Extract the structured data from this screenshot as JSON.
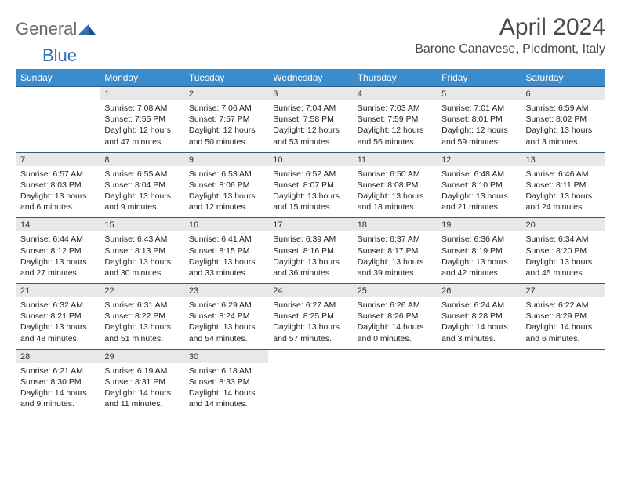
{
  "brand": {
    "part1": "General",
    "part2": "Blue"
  },
  "title": "April 2024",
  "location": "Barone Canavese, Piedmont, Italy",
  "colors": {
    "header_bg": "#3a8ccc",
    "header_text": "#ffffff",
    "daynum_bg": "#e8e8e8",
    "row_border": "#2c5c87",
    "logo_gray": "#6a6a6a",
    "logo_blue": "#2f6fb3",
    "title_color": "#4a4a4a"
  },
  "weekdays": [
    "Sunday",
    "Monday",
    "Tuesday",
    "Wednesday",
    "Thursday",
    "Friday",
    "Saturday"
  ],
  "weeks": [
    [
      null,
      {
        "n": "1",
        "sr": "7:08 AM",
        "ss": "7:55 PM",
        "dl": "12 hours and 47 minutes."
      },
      {
        "n": "2",
        "sr": "7:06 AM",
        "ss": "7:57 PM",
        "dl": "12 hours and 50 minutes."
      },
      {
        "n": "3",
        "sr": "7:04 AM",
        "ss": "7:58 PM",
        "dl": "12 hours and 53 minutes."
      },
      {
        "n": "4",
        "sr": "7:03 AM",
        "ss": "7:59 PM",
        "dl": "12 hours and 56 minutes."
      },
      {
        "n": "5",
        "sr": "7:01 AM",
        "ss": "8:01 PM",
        "dl": "12 hours and 59 minutes."
      },
      {
        "n": "6",
        "sr": "6:59 AM",
        "ss": "8:02 PM",
        "dl": "13 hours and 3 minutes."
      }
    ],
    [
      {
        "n": "7",
        "sr": "6:57 AM",
        "ss": "8:03 PM",
        "dl": "13 hours and 6 minutes."
      },
      {
        "n": "8",
        "sr": "6:55 AM",
        "ss": "8:04 PM",
        "dl": "13 hours and 9 minutes."
      },
      {
        "n": "9",
        "sr": "6:53 AM",
        "ss": "8:06 PM",
        "dl": "13 hours and 12 minutes."
      },
      {
        "n": "10",
        "sr": "6:52 AM",
        "ss": "8:07 PM",
        "dl": "13 hours and 15 minutes."
      },
      {
        "n": "11",
        "sr": "6:50 AM",
        "ss": "8:08 PM",
        "dl": "13 hours and 18 minutes."
      },
      {
        "n": "12",
        "sr": "6:48 AM",
        "ss": "8:10 PM",
        "dl": "13 hours and 21 minutes."
      },
      {
        "n": "13",
        "sr": "6:46 AM",
        "ss": "8:11 PM",
        "dl": "13 hours and 24 minutes."
      }
    ],
    [
      {
        "n": "14",
        "sr": "6:44 AM",
        "ss": "8:12 PM",
        "dl": "13 hours and 27 minutes."
      },
      {
        "n": "15",
        "sr": "6:43 AM",
        "ss": "8:13 PM",
        "dl": "13 hours and 30 minutes."
      },
      {
        "n": "16",
        "sr": "6:41 AM",
        "ss": "8:15 PM",
        "dl": "13 hours and 33 minutes."
      },
      {
        "n": "17",
        "sr": "6:39 AM",
        "ss": "8:16 PM",
        "dl": "13 hours and 36 minutes."
      },
      {
        "n": "18",
        "sr": "6:37 AM",
        "ss": "8:17 PM",
        "dl": "13 hours and 39 minutes."
      },
      {
        "n": "19",
        "sr": "6:36 AM",
        "ss": "8:19 PM",
        "dl": "13 hours and 42 minutes."
      },
      {
        "n": "20",
        "sr": "6:34 AM",
        "ss": "8:20 PM",
        "dl": "13 hours and 45 minutes."
      }
    ],
    [
      {
        "n": "21",
        "sr": "6:32 AM",
        "ss": "8:21 PM",
        "dl": "13 hours and 48 minutes."
      },
      {
        "n": "22",
        "sr": "6:31 AM",
        "ss": "8:22 PM",
        "dl": "13 hours and 51 minutes."
      },
      {
        "n": "23",
        "sr": "6:29 AM",
        "ss": "8:24 PM",
        "dl": "13 hours and 54 minutes."
      },
      {
        "n": "24",
        "sr": "6:27 AM",
        "ss": "8:25 PM",
        "dl": "13 hours and 57 minutes."
      },
      {
        "n": "25",
        "sr": "6:26 AM",
        "ss": "8:26 PM",
        "dl": "14 hours and 0 minutes."
      },
      {
        "n": "26",
        "sr": "6:24 AM",
        "ss": "8:28 PM",
        "dl": "14 hours and 3 minutes."
      },
      {
        "n": "27",
        "sr": "6:22 AM",
        "ss": "8:29 PM",
        "dl": "14 hours and 6 minutes."
      }
    ],
    [
      {
        "n": "28",
        "sr": "6:21 AM",
        "ss": "8:30 PM",
        "dl": "14 hours and 9 minutes."
      },
      {
        "n": "29",
        "sr": "6:19 AM",
        "ss": "8:31 PM",
        "dl": "14 hours and 11 minutes."
      },
      {
        "n": "30",
        "sr": "6:18 AM",
        "ss": "8:33 PM",
        "dl": "14 hours and 14 minutes."
      },
      null,
      null,
      null,
      null
    ]
  ],
  "labels": {
    "sunrise": "Sunrise: ",
    "sunset": "Sunset: ",
    "daylight": "Daylight: "
  }
}
